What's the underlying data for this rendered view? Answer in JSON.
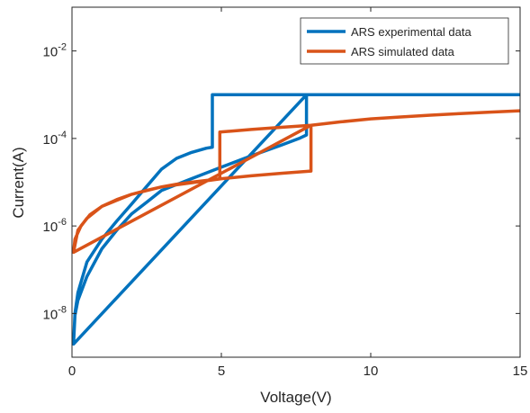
{
  "chart_data": {
    "type": "line",
    "xlabel": "Voltage(V)",
    "ylabel": "Current(A)",
    "xlim": [
      0,
      15
    ],
    "ylim": [
      1e-09,
      0.1
    ],
    "yscale": "log",
    "xticks": [
      0,
      5,
      10,
      15
    ],
    "xtick_labels": [
      "0",
      "5",
      "10",
      "15"
    ],
    "yticks": [
      1e-08,
      1e-06,
      0.0001,
      0.01
    ],
    "ytick_labels": [
      {
        "base": "10",
        "exp": "-8"
      },
      {
        "base": "10",
        "exp": "-6"
      },
      {
        "base": "10",
        "exp": "-4"
      },
      {
        "base": "10",
        "exp": "-2"
      }
    ],
    "grid": false,
    "legend_position": "top-right",
    "series": [
      {
        "name": "ARS experimental data",
        "color": "#0072BD",
        "x": [
          0.05,
          0.1,
          0.2,
          0.5,
          1.0,
          1.5,
          2.0,
          2.5,
          3.0,
          3.5,
          4.0,
          4.5,
          4.7,
          4.7,
          5.5,
          7.8,
          7.8,
          7.85,
          7.85,
          7.6,
          7.0,
          6.0,
          5.0,
          4.0,
          3.0,
          2.5,
          2.0,
          1.5,
          1.0,
          0.5,
          0.2,
          0.1,
          0.05,
          7.85,
          10.0,
          15.0
        ],
        "y": [
          2e-09,
          1e-08,
          3e-08,
          1.5e-07,
          5e-07,
          1.3e-06,
          3.2e-06,
          8e-06,
          2e-05,
          3.5e-05,
          4.8e-05,
          6e-05,
          6.3e-05,
          0.001,
          0.001,
          0.001,
          0.001,
          0.001,
          0.00012,
          0.0001,
          7e-05,
          4e-05,
          2.2e-05,
          1.2e-05,
          6.5e-06,
          3.5e-06,
          1.9e-06,
          8e-07,
          3e-07,
          7e-08,
          2e-08,
          9e-09,
          2e-09,
          0.001,
          0.001,
          0.001
        ]
      },
      {
        "name": "ARS simulated data",
        "color": "#D95319",
        "x": [
          0.05,
          0.1,
          0.3,
          0.6,
          1.0,
          1.5,
          2.0,
          2.5,
          3.0,
          3.5,
          4.0,
          4.5,
          4.95,
          4.95,
          6.0,
          7.0,
          8.0,
          8.0,
          7.0,
          6.0,
          5.0,
          5.0,
          3.0,
          2.0,
          1.0,
          0.5,
          0.2,
          0.05,
          8.0,
          9.0,
          10.0,
          11.0,
          12.0,
          13.0,
          14.0,
          15.0
        ],
        "y": [
          2.5e-07,
          5e-07,
          1e-06,
          1.8e-06,
          2.8e-06,
          4e-06,
          5.3e-06,
          6.5e-06,
          7.8e-06,
          9e-06,
          1e-05,
          1.1e-05,
          1.2e-05,
          0.00014,
          0.00016,
          0.00018,
          0.0002,
          1.8e-05,
          1.6e-05,
          1.4e-05,
          1.2e-05,
          1.2e-05,
          7.8e-06,
          5.3e-06,
          2.8e-06,
          1.5e-06,
          8e-07,
          2.5e-07,
          0.0002,
          0.00024,
          0.00028,
          0.00031,
          0.00034,
          0.00037,
          0.0004,
          0.00043
        ]
      }
    ]
  }
}
